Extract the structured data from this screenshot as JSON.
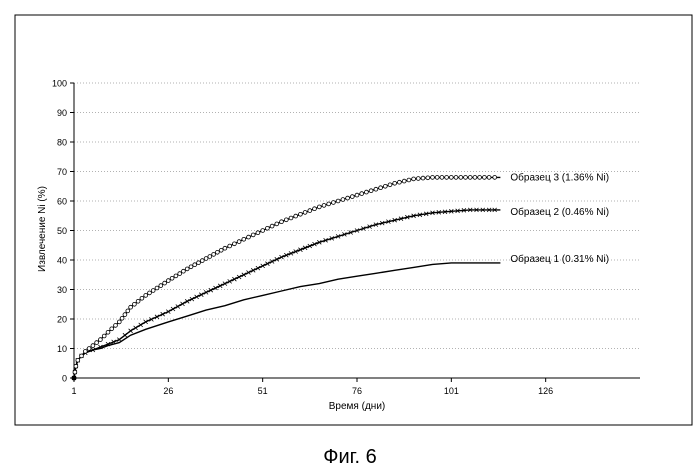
{
  "caption": "Фиг. 6",
  "chart_data": {
    "type": "line",
    "title": "",
    "xlabel": "Время (дни)",
    "ylabel": "Извлечение Ni (%)",
    "xlim": [
      1,
      151
    ],
    "ylim": [
      0,
      100
    ],
    "xticks": [
      1,
      26,
      51,
      76,
      101,
      126
    ],
    "yticks": [
      0,
      10,
      20,
      30,
      40,
      50,
      60,
      70,
      80,
      90,
      100
    ],
    "grid": "horizontal-dotted",
    "series": [
      {
        "name": "Образец 1 (0.31% Ni)",
        "marker": "line",
        "x": [
          1,
          1.5,
          2,
          3,
          4,
          6,
          8,
          10,
          13,
          16,
          20,
          26,
          31,
          36,
          41,
          46,
          51,
          56,
          61,
          66,
          71,
          76,
          81,
          86,
          91,
          96,
          101,
          106,
          111,
          114
        ],
        "y": [
          0,
          4,
          6,
          7.5,
          8.5,
          9.5,
          10,
          11,
          12,
          14.5,
          16.5,
          19,
          21,
          23,
          24.5,
          26.5,
          28,
          29.5,
          31,
          32,
          33.5,
          34.5,
          35.5,
          36.5,
          37.5,
          38.5,
          39,
          39,
          39,
          39
        ]
      },
      {
        "name": "Образец 2 (0.46% Ni)",
        "marker": "x",
        "x": [
          1,
          1.5,
          2,
          3,
          4,
          6,
          8,
          10,
          13,
          16,
          20,
          26,
          31,
          36,
          41,
          46,
          51,
          56,
          61,
          66,
          71,
          76,
          81,
          86,
          91,
          96,
          101,
          106,
          111,
          114
        ],
        "y": [
          0,
          4,
          6,
          7.5,
          8.5,
          9.5,
          10.5,
          11.5,
          13,
          16,
          19,
          22.5,
          26,
          29,
          32,
          35,
          38,
          41,
          43.5,
          46,
          48,
          50,
          52,
          53.5,
          55,
          56,
          56.5,
          57,
          57,
          57
        ]
      },
      {
        "name": "Образец 3 (1.36% Ni)",
        "marker": "circle",
        "x": [
          1,
          1.5,
          2,
          3,
          4,
          6,
          8,
          10,
          13,
          16,
          20,
          26,
          31,
          36,
          41,
          46,
          51,
          56,
          61,
          66,
          71,
          76,
          81,
          86,
          91,
          96,
          101,
          106,
          111,
          114
        ],
        "y": [
          0,
          4,
          6,
          7.5,
          9,
          11,
          13,
          15.5,
          19,
          24,
          28,
          33,
          37,
          40.5,
          44,
          47,
          50,
          53,
          55.5,
          58,
          60,
          62,
          64,
          66,
          67.5,
          68,
          68,
          68,
          68,
          68
        ]
      }
    ]
  }
}
